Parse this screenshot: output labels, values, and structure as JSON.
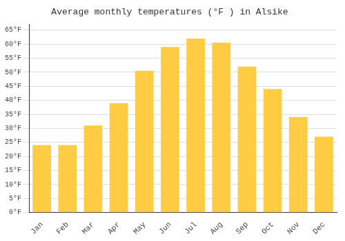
{
  "chart_data": {
    "type": "bar",
    "title": "Average monthly temperatures (°F ) in Alsike",
    "categories": [
      "Jan",
      "Feb",
      "Mar",
      "Apr",
      "May",
      "Jun",
      "Jul",
      "Aug",
      "Sep",
      "Oct",
      "Nov",
      "Dec"
    ],
    "values": [
      24,
      24,
      31,
      39,
      50.5,
      59,
      62,
      60.5,
      52,
      44,
      34,
      27
    ],
    "color": "#FFCC44",
    "ylim": [
      0,
      67
    ],
    "yticks": [
      {
        "value": 0,
        "label": "0°F"
      },
      {
        "value": 5,
        "label": "5°F"
      },
      {
        "value": 10,
        "label": "10°F"
      },
      {
        "value": 15,
        "label": "15°F"
      },
      {
        "value": 20,
        "label": "20°F"
      },
      {
        "value": 25,
        "label": "25°F"
      },
      {
        "value": 30,
        "label": "30°F"
      },
      {
        "value": 35,
        "label": "35°F"
      },
      {
        "value": 40,
        "label": "40°F"
      },
      {
        "value": 45,
        "label": "45°F"
      },
      {
        "value": 50,
        "label": "50°F"
      },
      {
        "value": 55,
        "label": "55°F"
      },
      {
        "value": 60,
        "label": "60°F"
      },
      {
        "value": 65,
        "label": "65°F"
      }
    ],
    "grid": true
  }
}
